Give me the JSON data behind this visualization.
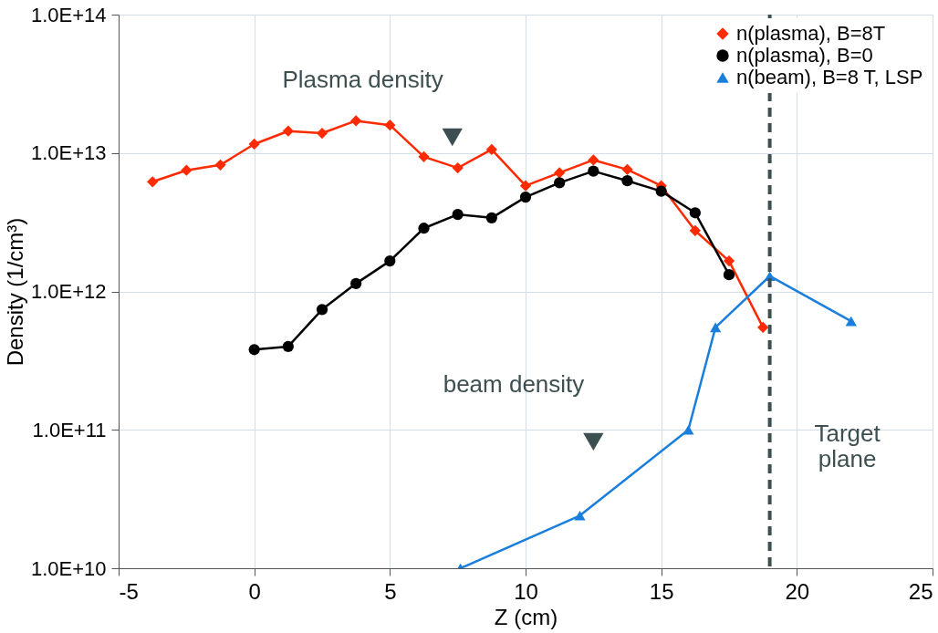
{
  "chart_data": {
    "type": "line",
    "xlabel": "Z (cm)",
    "ylabel": "Density (1/cm³)",
    "log": "y",
    "xlim": [
      -5,
      25
    ],
    "xticks": [
      -5,
      0,
      5,
      10,
      15,
      20,
      25
    ],
    "ylim": [
      10000000000.0,
      100000000000000.0
    ],
    "yticks": [
      {
        "value": 10000000000.0,
        "label": "1.0E+10"
      },
      {
        "value": 100000000000.0,
        "label": "1.0E+11"
      },
      {
        "value": 1000000000000.0,
        "label": "1.0E+12"
      },
      {
        "value": 10000000000000.0,
        "label": "1.0E+13"
      },
      {
        "value": 100000000000000.0,
        "label": "1.0E+14"
      }
    ],
    "grid": true,
    "legend": "top right",
    "line_style": "solid",
    "series": [
      {
        "name": "n(plasma), B=8T",
        "color": "#ff2a00",
        "marker": "diamond",
        "x": [
          -3.75,
          -2.5,
          -1.25,
          0,
          1.25,
          2.5,
          3.75,
          5,
          6.25,
          7.5,
          8.75,
          10,
          11.25,
          12.5,
          13.75,
          15,
          16.25,
          17.5,
          18.75
        ],
        "values": [
          6200000000000.0,
          7500000000000.0,
          8200000000000.0,
          11600000000000.0,
          14400000000000.0,
          13900000000000.0,
          17100000000000.0,
          15900000000000.0,
          9400000000000.0,
          7800000000000.0,
          10600000000000.0,
          5800000000000.0,
          7200000000000.0,
          8900000000000.0,
          7600000000000.0,
          5800000000000.0,
          2750000000000.0,
          1660000000000.0,
          550000000000.0
        ]
      },
      {
        "name": "n(plasma), B=0",
        "color": "#000000",
        "marker": "circle",
        "x": [
          0,
          1.25,
          2.5,
          3.75,
          5,
          6.25,
          7.5,
          8.75,
          10,
          11.25,
          12.5,
          13.75,
          15,
          16.25,
          17.5
        ],
        "values": [
          380000000000.0,
          400000000000.0,
          740000000000.0,
          1140000000000.0,
          1660000000000.0,
          2860000000000.0,
          3600000000000.0,
          3400000000000.0,
          4800000000000.0,
          6100000000000.0,
          7400000000000.0,
          6300000000000.0,
          5300000000000.0,
          3700000000000.0,
          1320000000000.0
        ]
      },
      {
        "name": "n(beam), B=8 T, LSP",
        "color": "#1a7fdc",
        "marker": "triangle",
        "x": [
          7.6,
          12,
          16,
          17,
          19,
          22
        ],
        "values": [
          10000000000.0,
          24000000000.0,
          100000000000.0,
          550000000000.0,
          1290000000000.0,
          610000000000.0
        ]
      }
    ],
    "ref_lines": [
      {
        "axis": "x",
        "value": 19,
        "label": "Target plane",
        "color": "#3d4f50",
        "line_style": "dashed"
      }
    ],
    "annotations": [
      {
        "text": "Plasma density",
        "x": 7.3,
        "y": 13000000000000.0
      },
      {
        "text": "beam density",
        "x": 12.5,
        "y": 82000000000.0
      }
    ]
  }
}
